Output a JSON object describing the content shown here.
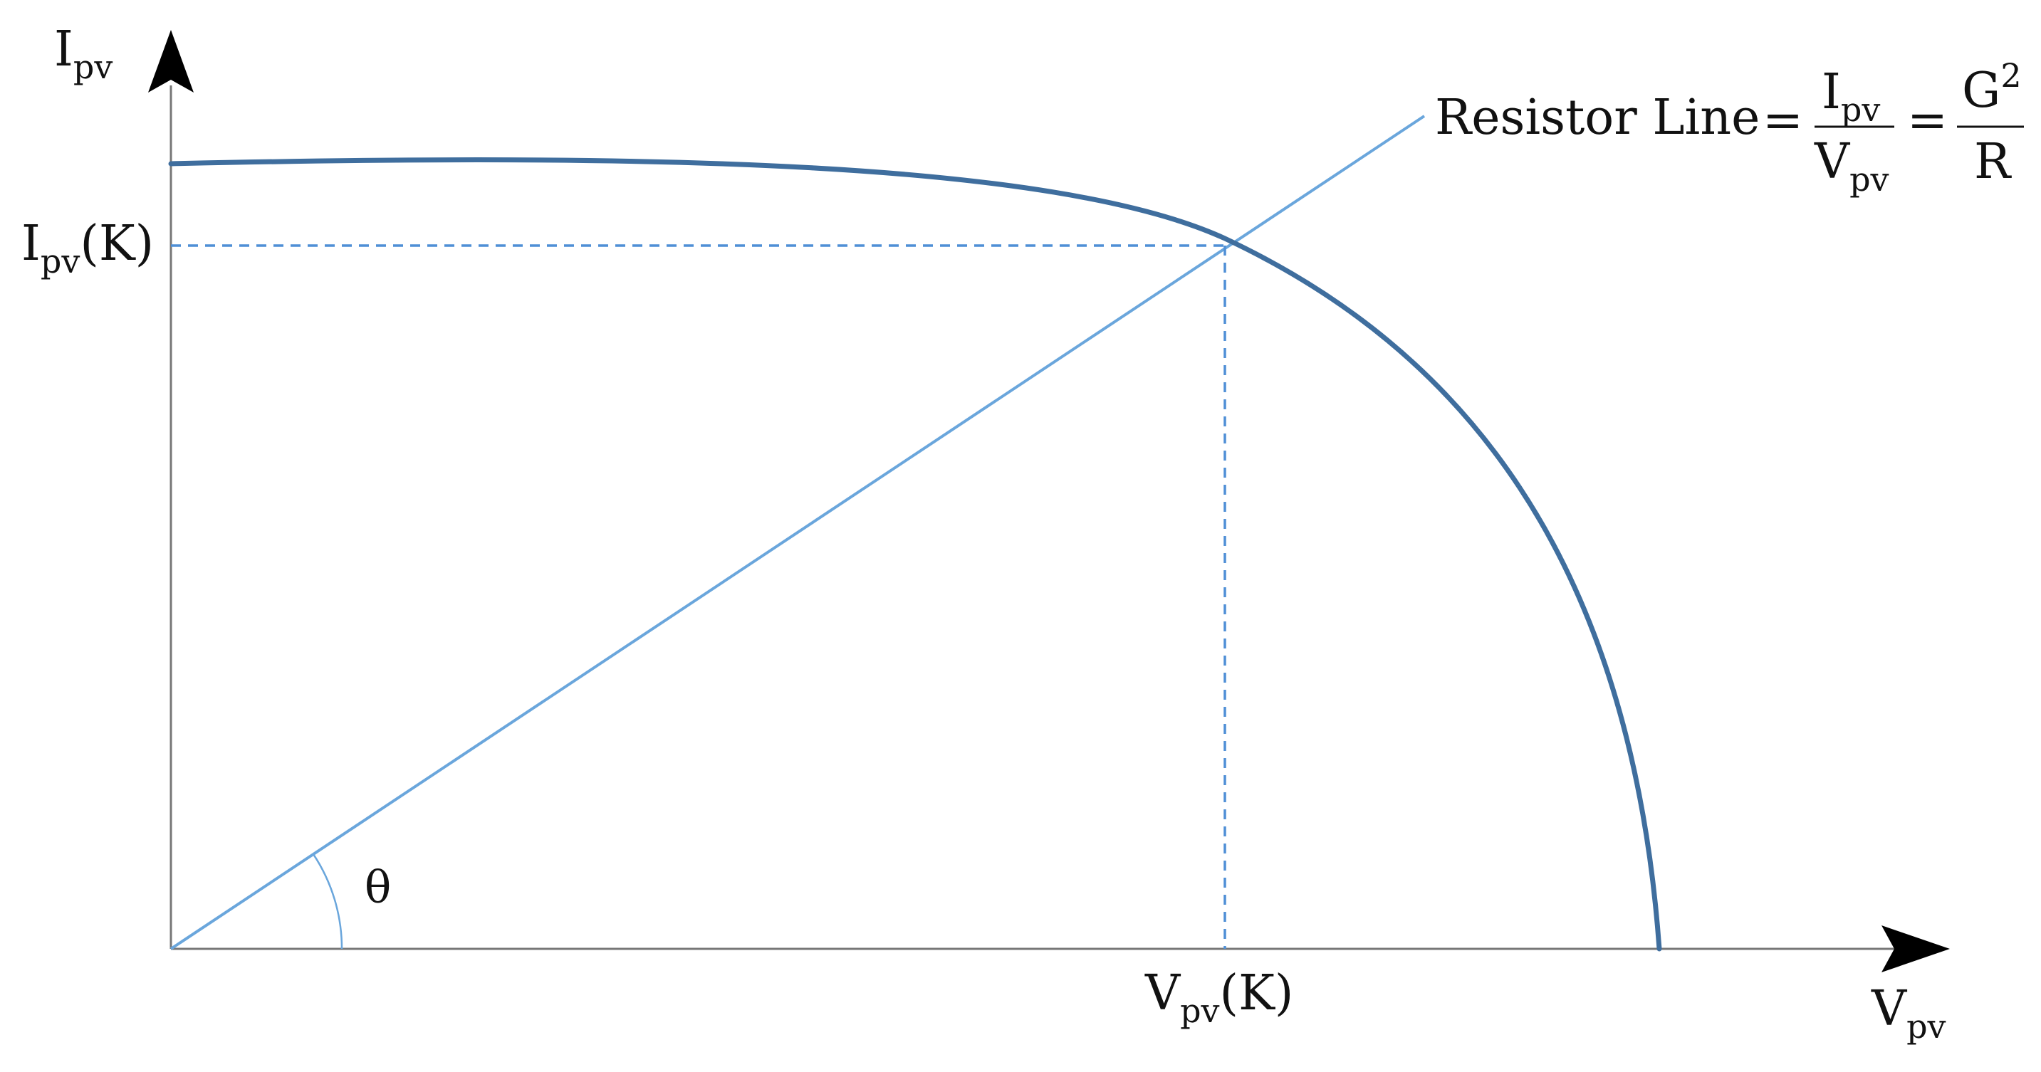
{
  "labels": {
    "y_axis_main": "I",
    "y_axis_sub": "pv",
    "x_axis_main": "V",
    "x_axis_sub": "pv",
    "ipv_k_main": "I",
    "ipv_k_sub": "pv",
    "ipv_k_tail": "(K)",
    "vpv_k_main": "V",
    "vpv_k_sub": "pv",
    "vpv_k_tail": "(K)",
    "theta": "θ",
    "resistor_line_text": "Resistor Line",
    "equals_1": "=",
    "equals_2": "=",
    "frac1_num_main": "I",
    "frac1_num_sub": "pv",
    "frac1_den_main": "V",
    "frac1_den_sub": "pv",
    "frac2_num_main": "G",
    "frac2_num_sup": "2",
    "frac2_den": "R"
  },
  "colors": {
    "axis": "#777777",
    "arrow": "#000000",
    "iv_curve": "#3f6e9e",
    "resistor_line": "#6aa6dc",
    "dashed": "#4f8fd6",
    "text": "#111111"
  }
}
